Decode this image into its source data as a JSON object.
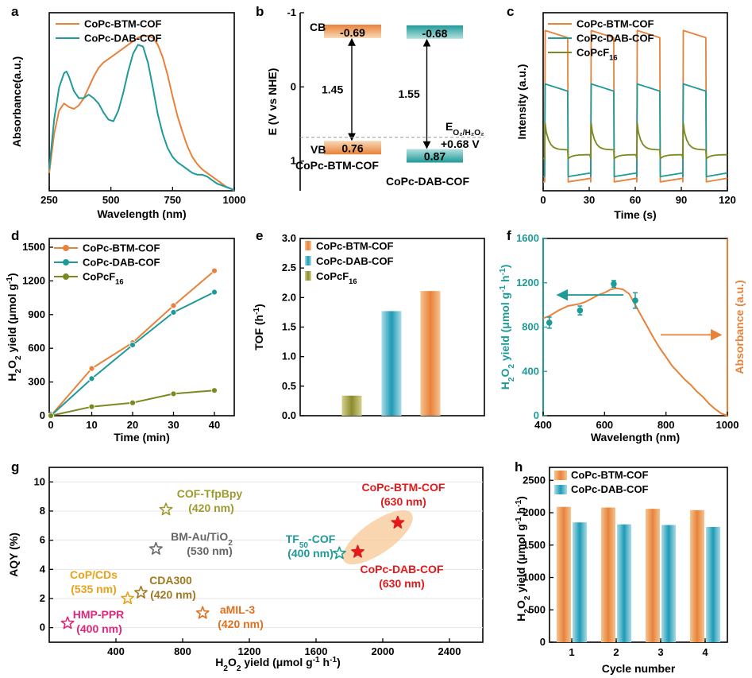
{
  "colors": {
    "btm": "#E8823A",
    "dab": "#1E9A98",
    "f16": "#7A8A1E",
    "red": "#E31A1C",
    "pink": "#E0287C",
    "gray": "#666666",
    "gold": "#E8A21A",
    "brown": "#A0781E",
    "olive": "#9C9C2E",
    "orange": "#E07020"
  },
  "chart_data": [
    {
      "id": "a",
      "letter": "a",
      "type": "line",
      "xlabel": "Wavelength (nm)",
      "ylabel": "Absorbance(a.u.)",
      "xlim": [
        250,
        1000
      ],
      "xticks": [
        "250",
        "500",
        "750",
        "1000"
      ],
      "series": [
        {
          "name": "CoPc-BTM-COF",
          "x": [
            250,
            270,
            290,
            310,
            330,
            350,
            370,
            390,
            410,
            430,
            450,
            470,
            490,
            510,
            530,
            550,
            570,
            590,
            610,
            630,
            650,
            670,
            690,
            710,
            730,
            750,
            770,
            790,
            810,
            830,
            850,
            870,
            890,
            910,
            930,
            950,
            970,
            990,
            1000
          ],
          "y": [
            0.1,
            0.32,
            0.45,
            0.49,
            0.47,
            0.46,
            0.48,
            0.52,
            0.58,
            0.64,
            0.69,
            0.72,
            0.74,
            0.76,
            0.78,
            0.8,
            0.82,
            0.84,
            0.86,
            0.87,
            0.87,
            0.86,
            0.82,
            0.75,
            0.65,
            0.53,
            0.42,
            0.33,
            0.25,
            0.19,
            0.15,
            0.12,
            0.1,
            0.08,
            0.06,
            0.04,
            0.02,
            0.01,
            0.0
          ]
        },
        {
          "name": "CoPc-DAB-COF",
          "x": [
            250,
            270,
            290,
            310,
            320,
            330,
            350,
            370,
            390,
            410,
            430,
            450,
            470,
            490,
            510,
            530,
            550,
            570,
            590,
            610,
            630,
            650,
            670,
            690,
            710,
            730,
            750,
            770,
            790,
            810,
            830,
            850,
            870,
            890,
            910,
            930,
            950,
            970,
            990,
            1000
          ],
          "y": [
            0.12,
            0.4,
            0.58,
            0.66,
            0.67,
            0.64,
            0.56,
            0.52,
            0.52,
            0.54,
            0.52,
            0.49,
            0.44,
            0.4,
            0.39,
            0.45,
            0.55,
            0.67,
            0.77,
            0.82,
            0.81,
            0.72,
            0.58,
            0.43,
            0.32,
            0.24,
            0.19,
            0.16,
            0.14,
            0.12,
            0.1,
            0.09,
            0.09,
            0.08,
            0.06,
            0.04,
            0.03,
            0.02,
            0.01,
            0.0
          ]
        }
      ]
    },
    {
      "id": "b",
      "letter": "b",
      "type": "band-diagram",
      "ylabel": "E (V vs NHE)",
      "ylim": [
        1.4,
        -1.0
      ],
      "yticks": [
        "-1",
        "0",
        "1"
      ],
      "bands": [
        {
          "name": "CoPc-BTM-COF",
          "cb": -0.69,
          "vb": 0.76,
          "cb_label": "-0.69",
          "vb_label": "0.76",
          "gap_label": "1.45"
        },
        {
          "name": "CoPc-DAB-COF",
          "cb": -0.68,
          "vb": 0.87,
          "cb_label": "-0.68",
          "vb_label": "0.87",
          "gap_label": "1.55"
        }
      ],
      "cb_text": "CB",
      "vb_text": "VB",
      "ref_potential": 0.68,
      "ref_label": "E",
      "ref_sub": "O₂/H₂O₂",
      "ref_value": "+0.68 V"
    },
    {
      "id": "c",
      "letter": "c",
      "type": "line",
      "xlabel": "Time (s)",
      "ylabel": "Intensity (a.u.)",
      "xlim": [
        0,
        120
      ],
      "xticks": [
        "0",
        "30",
        "60",
        "90",
        "120"
      ],
      "series": [
        {
          "name": "CoPc-BTM-COF",
          "base": 0.05,
          "on": 0.9
        },
        {
          "name": "CoPc-DAB-COF",
          "base": 0.08,
          "on": 0.6
        },
        {
          "name": "CoPcF",
          "sub": "16",
          "base": 0.18,
          "on": 0.38
        }
      ],
      "on_periods": [
        [
          1,
          16
        ],
        [
          31,
          46
        ],
        [
          61,
          76
        ],
        [
          91,
          106
        ]
      ]
    },
    {
      "id": "d",
      "letter": "d",
      "type": "line",
      "xlabel": "Time (min)",
      "ylabel_pre": "H",
      "ylabel_sub": "2",
      "ylabel_mid": "O",
      "ylabel_sub2": "2",
      "ylabel_post": " yield (μmol g",
      "ylabel_sup": "-1",
      "ylabel_end": ")",
      "xlim": [
        0,
        40
      ],
      "ylim": [
        0,
        1500
      ],
      "xticks": [
        "0",
        "10",
        "20",
        "30",
        "40"
      ],
      "yticks": [
        "0",
        "300",
        "600",
        "900",
        "1200",
        "1500"
      ],
      "series": [
        {
          "name": "CoPc-BTM-COF",
          "x": [
            0,
            10,
            20,
            30,
            40
          ],
          "y": [
            0,
            420,
            650,
            980,
            1290
          ]
        },
        {
          "name": "CoPc-DAB-COF",
          "x": [
            0,
            10,
            20,
            30,
            40
          ],
          "y": [
            0,
            330,
            630,
            920,
            1100
          ]
        },
        {
          "name": "CoPcF",
          "sub": "16",
          "x": [
            0,
            10,
            20,
            30,
            40
          ],
          "y": [
            0,
            80,
            115,
            195,
            225
          ]
        }
      ]
    },
    {
      "id": "e",
      "letter": "e",
      "type": "bar",
      "ylabel": "TOF (h",
      "ylabel_sup": "-1",
      "ylabel_end": ")",
      "ylim": [
        0,
        3.0
      ],
      "yticks": [
        "0.0",
        "0.5",
        "1.0",
        "1.5",
        "2.0",
        "2.5",
        "3.0"
      ],
      "series": [
        {
          "name": "CoPc-BTM-COF",
          "value": 2.11
        },
        {
          "name": "CoPc-DAB-COF",
          "value": 1.77
        },
        {
          "name": "CoPcF",
          "sub": "16",
          "value": 0.34
        }
      ],
      "order": [
        2,
        1,
        0
      ]
    },
    {
      "id": "f",
      "letter": "f",
      "type": "scatter+line",
      "xlabel": "Wavelength (nm)",
      "ylabel_pre": "H",
      "ylabel_sub": "2",
      "ylabel_mid": "O",
      "ylabel_sub2": "2",
      "ylabel_post": " yield (μmol g",
      "ylabel_sup": "-1",
      "ylabel_mid2": " h",
      "ylabel_sup2": "-1",
      "ylabel_end": ")",
      "y2label": "Absorbance (a.u.)",
      "xlim": [
        400,
        1000
      ],
      "ylim": [
        0,
        1600
      ],
      "xticks": [
        "400",
        "600",
        "800",
        "1000"
      ],
      "yticks": [
        "0",
        "400",
        "800",
        "1200",
        "1600"
      ],
      "points": {
        "x": [
          420,
          520,
          630,
          700
        ],
        "y": [
          840,
          950,
          1190,
          1040
        ],
        "err": [
          50,
          40,
          30,
          70
        ]
      },
      "absorbance": {
        "x": [
          400,
          420,
          450,
          480,
          500,
          520,
          540,
          560,
          580,
          600,
          620,
          640,
          660,
          680,
          700,
          720,
          740,
          760,
          780,
          800,
          820,
          840,
          860,
          880,
          900,
          920,
          940,
          960,
          980,
          1000
        ],
        "y": [
          880,
          900,
          950,
          990,
          1000,
          1010,
          1030,
          1060,
          1090,
          1110,
          1140,
          1150,
          1140,
          1100,
          1000,
          900,
          800,
          700,
          610,
          530,
          450,
          390,
          330,
          280,
          220,
          170,
          110,
          60,
          20,
          0
        ]
      }
    },
    {
      "id": "g",
      "letter": "g",
      "type": "scatter",
      "xlabel_pre": "H",
      "xlabel_sub": "2",
      "xlabel_mid": "O",
      "xlabel_sub2": "2",
      "xlabel_post": " yield (μmol g",
      "xlabel_sup": "-1",
      "xlabel_mid2": " h",
      "xlabel_sup2": "-1",
      "xlabel_end": ")",
      "ylabel": "AQY (%)",
      "xlim": [
        0,
        2600
      ],
      "ylim": [
        -1,
        11
      ],
      "xticks": [
        "400",
        "800",
        "1200",
        "1600",
        "2000",
        "2400"
      ],
      "yticks": [
        "0",
        "2",
        "4",
        "6",
        "8",
        "10"
      ],
      "points": [
        {
          "name": "COF-TfpBpy",
          "sub": "",
          "wl": "(420 nm)",
          "x": 700,
          "y": 8.1,
          "color": "olive",
          "filled": false
        },
        {
          "name": "BM-Au/TiO",
          "sub": "2",
          "wl": "(530 nm)",
          "x": 640,
          "y": 5.4,
          "color": "gray",
          "filled": false
        },
        {
          "name": "CoP/CDs",
          "sub": "",
          "wl": "(535 nm)",
          "x": 470,
          "y": 2.0,
          "color": "gold",
          "filled": false
        },
        {
          "name": "CDA300",
          "sub": "",
          "wl": "(420 nm)",
          "x": 550,
          "y": 2.4,
          "color": "brown",
          "filled": false
        },
        {
          "name": "HMP-PPR",
          "sub": "",
          "wl": "(400 nm)",
          "x": 110,
          "y": 0.3,
          "color": "pink",
          "filled": false
        },
        {
          "name": "aMIL-3",
          "sub": "",
          "wl": "(420 nm)",
          "x": 920,
          "y": 1.0,
          "color": "orange",
          "filled": false
        },
        {
          "name": "TF",
          "sub": "50",
          "post": "-COF",
          "wl": "(400 nm)",
          "x": 1740,
          "y": 5.1,
          "color": "dab",
          "filled": false
        },
        {
          "name": "CoPc-BTM-COF",
          "sub": "",
          "wl": "(630 nm)",
          "x": 2090,
          "y": 7.2,
          "color": "red",
          "filled": true
        },
        {
          "name": "CoPc-DAB-COF",
          "sub": "",
          "wl": "(630 nm)",
          "x": 1850,
          "y": 5.2,
          "color": "red",
          "filled": true
        }
      ]
    },
    {
      "id": "h",
      "letter": "h",
      "type": "bar",
      "xlabel": "Cycle number",
      "ylabel_pre": "H",
      "ylabel_sub": "2",
      "ylabel_mid": "O",
      "ylabel_sub2": "2",
      "ylabel_post": " yield (μmol g",
      "ylabel_sup": "-1",
      "ylabel_mid2": " h",
      "ylabel_sup2": "-1",
      "ylabel_end": ")",
      "categories": [
        "1",
        "2",
        "3",
        "4"
      ],
      "ylim": [
        0,
        2700
      ],
      "yticks": [
        "0",
        "500",
        "1000",
        "1500",
        "2000",
        "2500"
      ],
      "series": [
        {
          "name": "CoPc-BTM-COF",
          "values": [
            2090,
            2080,
            2060,
            2040
          ]
        },
        {
          "name": "CoPc-DAB-COF",
          "values": [
            1850,
            1820,
            1810,
            1780
          ]
        }
      ]
    }
  ]
}
